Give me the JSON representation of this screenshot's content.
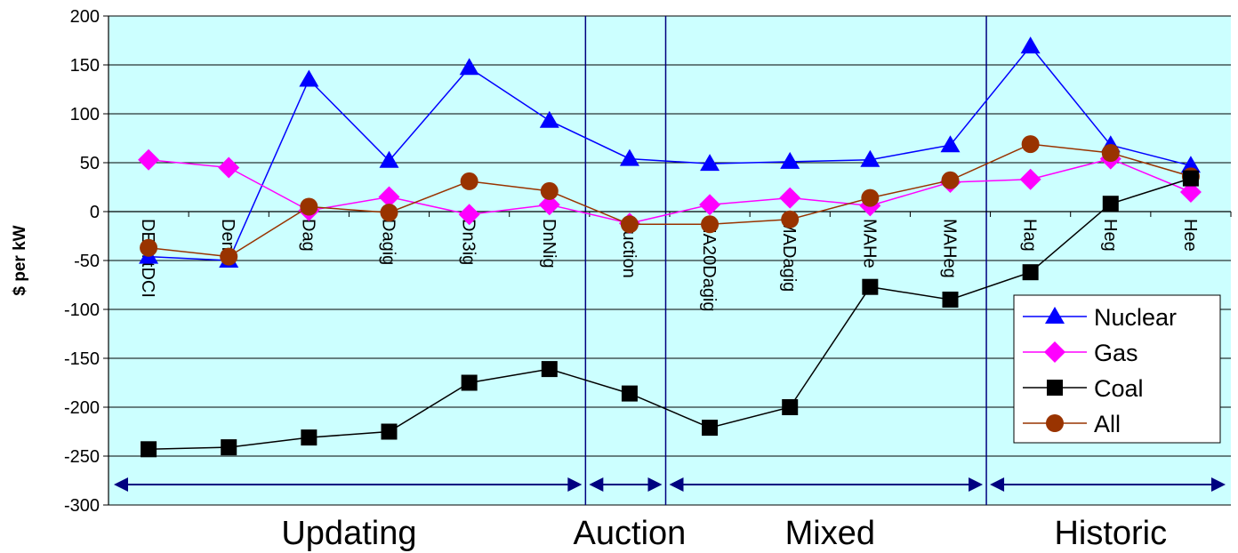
{
  "chart_data": {
    "type": "line",
    "title": "",
    "xlabel": "",
    "ylabel": "$ per kW",
    "ylim": [
      -300,
      200
    ],
    "yticks": [
      200,
      150,
      100,
      50,
      0,
      -50,
      -100,
      -150,
      -200,
      -250,
      -300
    ],
    "grid": true,
    "legend_position": "right",
    "categories": [
      "DEmitDCI",
      "Demit",
      "Dag",
      "Dagig",
      "Dn3ig",
      "DnNig",
      "Auction",
      "MA20Dagig",
      "MADagig",
      "MAHe",
      "MAHeg",
      "Hag",
      "Heg",
      "Hee"
    ],
    "series": [
      {
        "name": "Nuclear",
        "color": "#0000ff",
        "marker": "triangle",
        "values": [
          -46,
          -50,
          135,
          52,
          147,
          93,
          54,
          49,
          51,
          53,
          68,
          169,
          68,
          47
        ]
      },
      {
        "name": "Gas",
        "color": "#ff00ff",
        "marker": "diamond",
        "values": [
          53,
          45,
          1,
          15,
          -3,
          7,
          -12,
          7,
          14,
          6,
          30,
          33,
          54,
          20
        ]
      },
      {
        "name": "Coal",
        "color": "#000000",
        "marker": "square",
        "values": [
          -243,
          -241,
          -231,
          -225,
          -175,
          -161,
          -186,
          -221,
          -200,
          -77,
          -90,
          -62,
          8,
          34
        ]
      },
      {
        "name": "All",
        "color": "#993300",
        "marker": "circle",
        "values": [
          -37,
          -46,
          5,
          -1,
          31,
          21,
          -13,
          -13,
          -8,
          14,
          32,
          69,
          60,
          36
        ]
      }
    ],
    "groups": [
      {
        "label": "Updating",
        "from": 0,
        "to": 5
      },
      {
        "label": "Auction",
        "from": 6,
        "to": 6
      },
      {
        "label": "Mixed",
        "from": 7,
        "to": 10
      },
      {
        "label": "Historic",
        "from": 11,
        "to": 13
      }
    ],
    "colors": {
      "plot_background": "#ccffff",
      "gridline": "#000000",
      "arrow": "#000080",
      "divider": "#000080"
    }
  }
}
